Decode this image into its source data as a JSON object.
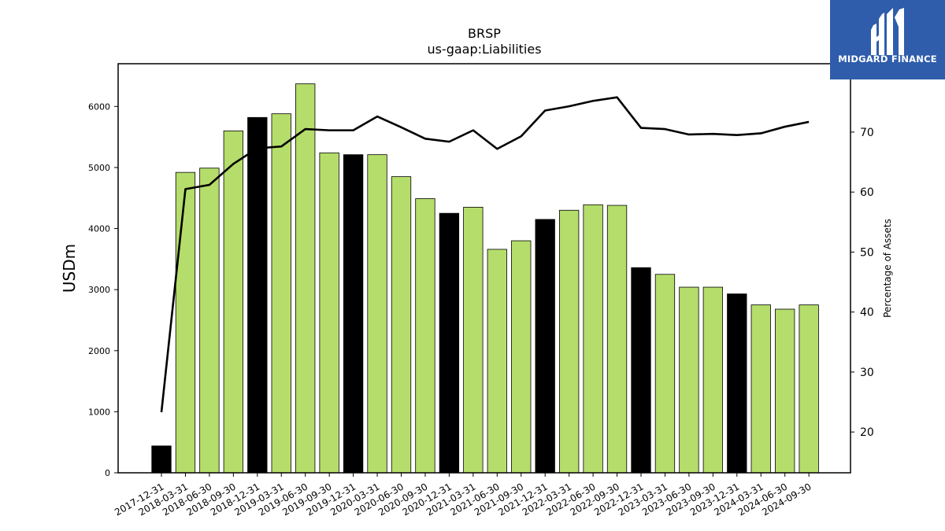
{
  "chart_data": {
    "type": "bar",
    "title": "BRSP",
    "subtitle": "us-gaap:Liabilities",
    "ylabel": "USDm",
    "y2label": "Percentage of Assets",
    "ylim": [
      0,
      6700
    ],
    "y2lim": [
      13.2,
      81.4
    ],
    "yticks": [
      0,
      1000,
      2000,
      3000,
      4000,
      5000,
      6000
    ],
    "y2ticks": [
      20,
      30,
      40,
      50,
      60,
      70
    ],
    "categories": [
      "2017-12-31",
      "2018-03-31",
      "2018-06-30",
      "2018-09-30",
      "2018-12-31",
      "2019-03-31",
      "2019-06-30",
      "2019-09-30",
      "2019-12-31",
      "2020-03-31",
      "2020-06-30",
      "2020-09-30",
      "2020-12-31",
      "2021-03-31",
      "2021-06-30",
      "2021-09-30",
      "2021-12-31",
      "2022-03-31",
      "2022-06-30",
      "2022-09-30",
      "2022-12-31",
      "2023-03-31",
      "2023-06-30",
      "2023-09-30",
      "2023-12-31",
      "2024-03-31",
      "2024-06-30",
      "2024-09-30"
    ],
    "series": [
      {
        "name": "Liabilities",
        "axis": "left",
        "values": [
          440,
          4920,
          4990,
          5600,
          5820,
          5880,
          6370,
          5240,
          5210,
          5210,
          4850,
          4490,
          4250,
          4350,
          3660,
          3800,
          4150,
          4300,
          4390,
          4380,
          3360,
          3250,
          3040,
          3040,
          2930,
          2750,
          2680,
          2750
        ]
      },
      {
        "name": "Percentage of Assets",
        "axis": "right",
        "values": [
          23.3,
          60.5,
          61.2,
          64.7,
          67.3,
          67.6,
          70.5,
          70.3,
          70.3,
          72.6,
          70.8,
          68.9,
          68.4,
          70.3,
          67.2,
          69.3,
          73.6,
          74.3,
          75.2,
          75.8,
          70.7,
          70.5,
          69.6,
          69.7,
          69.5,
          69.8,
          70.9,
          71.7
        ]
      }
    ],
    "colors": {
      "bar": "#b5dd6b",
      "bar_highlight": "#000000",
      "line": "#000000"
    },
    "highlight_categories": [
      "2017-12-31",
      "2018-12-31",
      "2019-12-31",
      "2020-12-31",
      "2021-12-31",
      "2022-12-31",
      "2023-12-31"
    ]
  },
  "logo": {
    "text": "MIDGARD FINANCE"
  }
}
